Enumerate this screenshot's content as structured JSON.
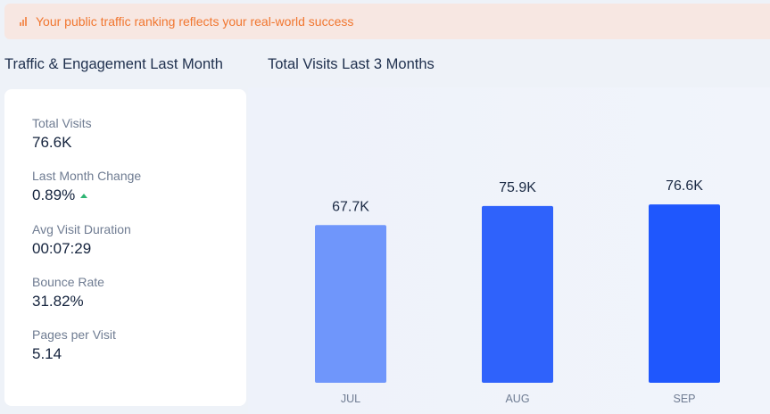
{
  "banner": {
    "text": "Your public traffic ranking reflects your real-world success",
    "icon": "bar-chart-icon",
    "color": "#f1762f"
  },
  "left_title": "Traffic & Engagement Last Month",
  "right_title": "Total Visits Last 3 Months",
  "metrics": [
    {
      "label": "Total Visits",
      "value": "76.6K"
    },
    {
      "label": "Last Month Change",
      "value": "0.89%",
      "trend": "up"
    },
    {
      "label": "Avg Visit Duration",
      "value": "00:07:29"
    },
    {
      "label": "Bounce Rate",
      "value": "31.82%"
    },
    {
      "label": "Pages per Visit",
      "value": "5.14"
    }
  ],
  "chart_data": {
    "type": "bar",
    "title": "Total Visits Last 3 Months",
    "categories": [
      "JUL",
      "AUG",
      "SEP"
    ],
    "values": [
      67.7,
      75.9,
      76.6
    ],
    "value_labels": [
      "67.7K",
      "75.9K",
      "76.6K"
    ],
    "colors": [
      "#6f96fb",
      "#2f62fb",
      "#1f57fd"
    ],
    "ylim": [
      0,
      100
    ],
    "grid": false
  }
}
